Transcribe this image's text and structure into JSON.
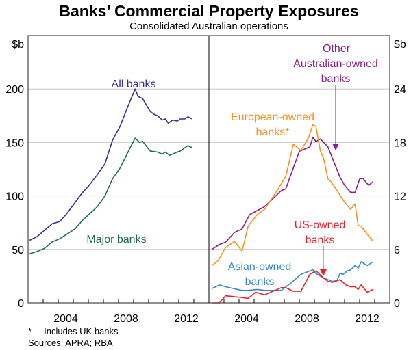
{
  "chart_data": [
    {
      "type": "line",
      "title": "Banks’ Commercial Property Exposures",
      "subtitle": "Consolidated Australian operations",
      "ylabel": "$b",
      "ylim": [
        0,
        250
      ],
      "yticks": [
        "0",
        "50",
        "100",
        "150",
        "200"
      ],
      "xlim": [
        2002,
        2014
      ],
      "xticks": [
        "2004",
        "2008",
        "2012"
      ],
      "grid": true,
      "series": [
        {
          "name": "All banks",
          "color": "#35309a",
          "x": [
            2002.1,
            2002.6,
            2003.6,
            2004.1,
            2004.6,
            2005.6,
            2006.0,
            2006.6,
            2007.1,
            2007.6,
            2008.1,
            2008.6,
            2009.1,
            2009.3,
            2009.6,
            2010.1,
            2010.4,
            2010.6,
            2010.9,
            2011.1,
            2011.3,
            2011.6,
            2011.9,
            2012.1,
            2012.4,
            2012.6,
            2012.9
          ],
          "y": [
            58.5,
            62,
            74,
            76,
            84,
            103,
            109,
            120,
            130,
            152,
            165,
            183,
            200,
            193,
            191,
            179,
            176,
            175,
            171,
            172,
            168,
            171,
            170,
            172,
            172,
            174,
            172
          ]
        },
        {
          "name": "Major banks",
          "color": "#1f6b4e",
          "x": [
            2002.1,
            2002.6,
            2003.1,
            2003.6,
            2004.1,
            2005.1,
            2005.6,
            2006.6,
            2007.1,
            2007.6,
            2008.1,
            2008.6,
            2008.8,
            2009.1,
            2009.4,
            2009.6,
            2010.1,
            2010.6,
            2010.9,
            2011.1,
            2011.4,
            2011.9,
            2012.1,
            2012.6,
            2012.9
          ],
          "y": [
            46,
            48,
            51,
            57,
            60,
            69,
            77,
            90,
            100,
            116,
            126,
            140,
            146,
            154,
            150,
            151,
            142,
            141,
            139,
            141,
            138,
            141,
            142,
            147,
            145
          ]
        }
      ]
    },
    {
      "type": "line",
      "ylabel": "$b",
      "ylim": [
        0,
        30
      ],
      "yticks": [
        "0",
        "6",
        "12",
        "18",
        "24"
      ],
      "xlim": [
        2002,
        2014
      ],
      "xticks": [
        "2004",
        "2008",
        "2012"
      ],
      "grid": true,
      "series": [
        {
          "name": "Other Australian-owned banks",
          "color": "#8a1e8c",
          "x": [
            2002.2,
            2002.7,
            2003.1,
            2003.7,
            2004.2,
            2004.7,
            2005.7,
            2006.8,
            2007.1,
            2008.0,
            2008.7,
            2008.9,
            2009.1,
            2009.4,
            2009.9,
            2010.2,
            2010.7,
            2011.0,
            2011.4,
            2011.7,
            2012.0,
            2012.2,
            2012.6,
            2012.9
          ],
          "y": [
            6.0,
            6.55,
            6.8,
            7.9,
            8.3,
            9.9,
            10.8,
            12.6,
            12.8,
            17.0,
            17.5,
            18.6,
            18.1,
            18.4,
            17.5,
            16.2,
            14.1,
            13.2,
            12.4,
            12.4,
            13.9,
            14.0,
            13.2,
            13.6
          ]
        },
        {
          "name": "European-owned banks*",
          "color": "#f7941d",
          "x": [
            2002.2,
            2002.6,
            2003.1,
            2003.7,
            2004.2,
            2004.6,
            2005.2,
            2005.7,
            2006.6,
            2007.1,
            2007.6,
            2008.1,
            2008.6,
            2008.9,
            2009.1,
            2009.4,
            2009.6,
            2009.9,
            2010.1,
            2010.5,
            2011.0,
            2011.4,
            2011.7,
            2011.9,
            2012.1,
            2012.5,
            2012.9
          ],
          "y": [
            4.2,
            4.7,
            6.2,
            6.9,
            5.8,
            8.6,
            9.9,
            10.5,
            12.8,
            14.2,
            17.8,
            17.1,
            18.5,
            20.0,
            19.8,
            17.0,
            16.3,
            13.9,
            13.6,
            12.6,
            11.3,
            10.5,
            11.1,
            8.7,
            8.6,
            7.7,
            6.9
          ]
        },
        {
          "name": "Asian-owned banks",
          "color": "#3a87c8",
          "x": [
            2002.2,
            2002.7,
            2003.1,
            2004.2,
            2004.6,
            2005.2,
            2005.7,
            2006.8,
            2007.5,
            2008.1,
            2008.9,
            2009.1,
            2009.6,
            2010.2,
            2010.5,
            2010.7,
            2010.9,
            2011.2,
            2011.4,
            2011.7,
            2011.9,
            2012.1,
            2012.5,
            2012.9
          ],
          "y": [
            1.6,
            2.0,
            1.8,
            1.4,
            1.4,
            1.5,
            1.4,
            1.4,
            2.3,
            3.2,
            3.7,
            3.3,
            2.8,
            2.4,
            2.5,
            3.3,
            3.2,
            3.6,
            3.7,
            4.2,
            3.9,
            4.6,
            4.2,
            4.6
          ]
        },
        {
          "name": "US-owned banks",
          "color": "#e8202a",
          "x": [
            2002.2,
            2002.7,
            2003.1,
            2004.2,
            2004.6,
            2005.1,
            2005.7,
            2006.8,
            2007.1,
            2007.6,
            2008.1,
            2008.7,
            2009.1,
            2009.6,
            2009.9,
            2010.2,
            2010.7,
            2011.1,
            2011.4,
            2011.7,
            2011.9,
            2012.1,
            2012.5,
            2012.9
          ],
          "y": [
            0,
            0,
            0.8,
            0.6,
            0.5,
            1.2,
            0.9,
            1.7,
            1.7,
            1.3,
            1.3,
            3.2,
            3.6,
            2.8,
            2.4,
            2.3,
            2.6,
            2.0,
            1.8,
            1.8,
            1.5,
            2.0,
            1.2,
            1.5
          ]
        }
      ]
    }
  ],
  "labels": {
    "title": "Banks’ Commercial Property Exposures",
    "subtitle": "Consolidated Australian operations",
    "left_unit": "$b",
    "right_unit": "$b",
    "all_banks": "All banks",
    "major_banks": "Major banks",
    "other_aus_1": "Other",
    "other_aus_2": "Australian-owned",
    "other_aus_3": "banks",
    "european_1": "European-owned",
    "european_2": "banks*",
    "us_1": "US-owned",
    "us_2": "banks",
    "asian_1": "Asian-owned",
    "asian_2": "banks",
    "left_yticks": [
      "0",
      "50",
      "100",
      "150",
      "200"
    ],
    "right_yticks": [
      "0",
      "6",
      "12",
      "18",
      "24"
    ],
    "xticks": [
      "2004",
      "2008",
      "2012"
    ]
  },
  "footnotes": {
    "note": "*     Includes UK banks",
    "sources": "Sources: APRA; RBA"
  }
}
